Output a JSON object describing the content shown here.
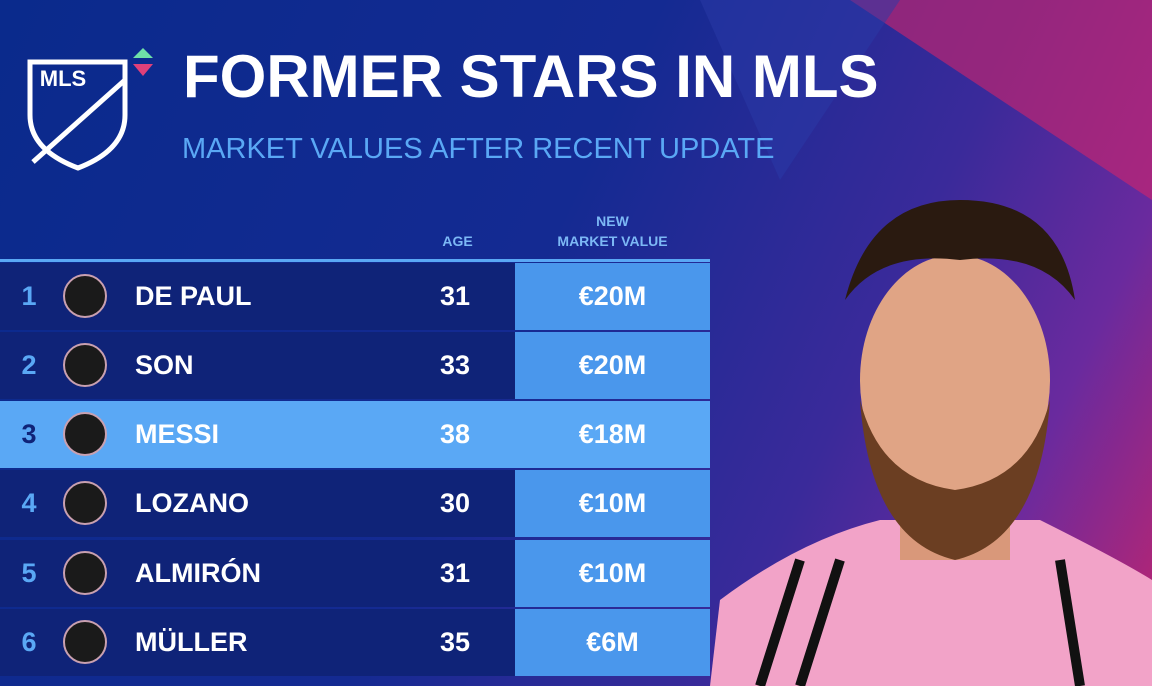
{
  "header": {
    "logo_text": "MLS",
    "title": "FORMER STARS IN MLS",
    "subtitle": "MARKET VALUES AFTER RECENT UPDATE"
  },
  "table": {
    "columns": {
      "age": "AGE",
      "value": [
        "NEW",
        "MARKET VALUE"
      ]
    },
    "rows": [
      {
        "rank": 1,
        "name": "DE PAUL",
        "age": 31,
        "value": "€20M"
      },
      {
        "rank": 2,
        "name": "SON",
        "age": 33,
        "value": "€20M"
      },
      {
        "rank": 3,
        "name": "MESSI",
        "age": 38,
        "value": "€18M"
      },
      {
        "rank": 4,
        "name": "LOZANO",
        "age": 30,
        "value": "€10M"
      },
      {
        "rank": 5,
        "name": "ALMIRÓN",
        "age": 31,
        "value": "€10M"
      },
      {
        "rank": 6,
        "name": "MÜLLER",
        "age": 35,
        "value": "€6M"
      }
    ]
  }
}
